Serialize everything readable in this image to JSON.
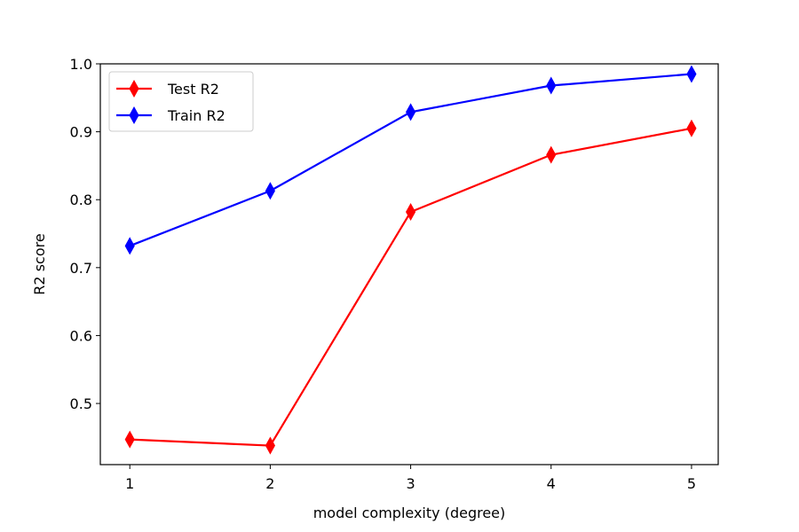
{
  "chart_data": {
    "type": "line",
    "title": "",
    "xlabel": "model complexity (degree)",
    "ylabel": "R2 score",
    "x": [
      1,
      2,
      3,
      4,
      5
    ],
    "xticks": [
      "1",
      "2",
      "3",
      "4",
      "5"
    ],
    "yticks": [
      "0.5",
      "0.6",
      "0.7",
      "0.8",
      "0.9",
      "1.0"
    ],
    "xlim": [
      0.79,
      5.19
    ],
    "ylim": [
      0.41,
      1.0
    ],
    "grid": false,
    "legend_position": "top-left",
    "series": [
      {
        "name": "Test R2",
        "color": "#ff0000",
        "marker": "thin-diamond",
        "values": [
          0.447,
          0.438,
          0.782,
          0.866,
          0.905
        ]
      },
      {
        "name": "Train R2",
        "color": "#0000ff",
        "marker": "thin-diamond",
        "values": [
          0.732,
          0.813,
          0.929,
          0.968,
          0.985
        ]
      }
    ]
  }
}
